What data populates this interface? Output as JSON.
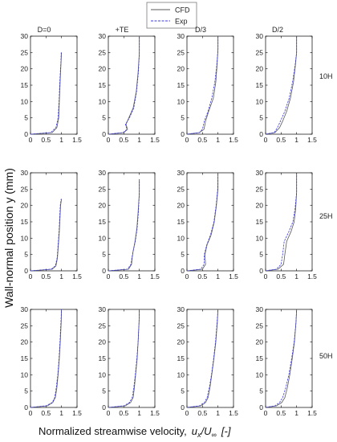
{
  "legend": {
    "placement": "top-center",
    "entries": [
      {
        "label": "CFD",
        "color": "#5a5a5a"
      },
      {
        "label": "Exp",
        "color": "#3b3bd6"
      }
    ]
  },
  "ylabel": "Wall-normal position y (mm)",
  "xlabel_text": "Normalized streamwise velocity,",
  "xlabel_symbol": {
    "u": "u",
    "x": "x",
    "slash": "/",
    "U": "U",
    "inf": "∞",
    "unit": "[-]"
  },
  "column_titles": [
    "D=0",
    "+TE",
    "D/3",
    "D/2"
  ],
  "row_titles": [
    "10H",
    "25H",
    "50H"
  ],
  "chart_data": {
    "type": "line",
    "layout": "small-multiples 3x4",
    "xlim": [
      0,
      1.5
    ],
    "ylim": [
      0,
      30
    ],
    "xticks": [
      "0",
      "0.5",
      "1",
      "1.5"
    ],
    "yticks": [
      "0",
      "5",
      "10",
      "15",
      "20",
      "25",
      "30"
    ],
    "grid": false,
    "panels": [
      [
        {
          "col": "D=0",
          "row": "10H",
          "series": [
            {
              "name": "CFD",
              "x": [
                0.0,
                0.7,
                0.85,
                0.91,
                0.93,
                0.96,
                1.0,
                1.0
              ],
              "y": [
                0,
                0.5,
                2,
                5,
                10,
                17,
                25,
                25
              ]
            },
            {
              "name": "Exp",
              "x": [
                0.0,
                0.65,
                0.82,
                0.89,
                0.92,
                0.95,
                0.98,
                0.99
              ],
              "y": [
                0,
                0.5,
                2,
                5,
                10,
                17,
                22,
                25
              ]
            }
          ]
        },
        {
          "col": "+TE",
          "row": "10H",
          "series": [
            {
              "name": "CFD",
              "x": [
                0.0,
                0.5,
                0.62,
                0.57,
                0.66,
                0.8,
                0.9,
                0.96,
                1.0,
                1.0
              ],
              "y": [
                0,
                0.5,
                1.5,
                3,
                5,
                8,
                13,
                19,
                25,
                30
              ]
            },
            {
              "name": "Exp",
              "x": [
                0.0,
                0.48,
                0.6,
                0.55,
                0.68,
                0.82,
                0.91,
                0.97,
                1.0,
                1.0
              ],
              "y": [
                0,
                0.5,
                1.5,
                3,
                5,
                8,
                13,
                19,
                25,
                30
              ]
            }
          ]
        },
        {
          "col": "D/3",
          "row": "10H",
          "series": [
            {
              "name": "CFD",
              "x": [
                0.0,
                0.4,
                0.55,
                0.6,
                0.7,
                0.85,
                0.93,
                0.97,
                1.0,
                1.0
              ],
              "y": [
                0,
                0.5,
                1.5,
                4,
                7,
                11,
                16,
                21,
                26,
                30
              ]
            },
            {
              "name": "Exp",
              "x": [
                0.0,
                0.4,
                0.5,
                0.56,
                0.68,
                0.8,
                0.9,
                0.96,
                1.0,
                1.0
              ],
              "y": [
                0,
                0.5,
                1.5,
                4,
                7,
                11,
                16,
                21,
                26,
                30
              ]
            }
          ]
        },
        {
          "col": "D/2",
          "row": "10H",
          "series": [
            {
              "name": "CFD",
              "x": [
                0.0,
                0.3,
                0.45,
                0.55,
                0.68,
                0.8,
                0.9,
                0.96,
                1.0,
                1.0
              ],
              "y": [
                0,
                0.5,
                2,
                4,
                7,
                11,
                16,
                21,
                25,
                30
              ]
            },
            {
              "name": "Exp",
              "x": [
                0.0,
                0.28,
                0.38,
                0.48,
                0.62,
                0.76,
                0.87,
                0.95,
                1.0,
                1.0
              ],
              "y": [
                0,
                0.5,
                2,
                4,
                7,
                11,
                16,
                21,
                25,
                30
              ]
            }
          ]
        }
      ],
      [
        {
          "col": "D=0",
          "row": "25H",
          "series": [
            {
              "name": "CFD",
              "x": [
                0.0,
                0.7,
                0.82,
                0.87,
                0.9,
                0.93,
                0.95,
                0.97,
                1.0
              ],
              "y": [
                0,
                0.5,
                1.5,
                4,
                8,
                12,
                16,
                20,
                22
              ]
            },
            {
              "name": "Exp",
              "x": [
                0.0,
                0.67,
                0.8,
                0.86,
                0.89,
                0.92,
                0.94,
                0.96,
                0.99
              ],
              "y": [
                0,
                0.5,
                1.5,
                4,
                8,
                12,
                16,
                20,
                22
              ]
            }
          ]
        },
        {
          "col": "+TE",
          "row": "25H",
          "series": [
            {
              "name": "CFD",
              "x": [
                0.0,
                0.65,
                0.75,
                0.77,
                0.8,
                0.86,
                0.92,
                0.96,
                1.0,
                1.0
              ],
              "y": [
                0,
                0.5,
                2,
                4,
                6,
                9,
                13,
                18,
                24,
                28
              ]
            },
            {
              "name": "Exp",
              "x": [
                0.0,
                0.62,
                0.73,
                0.76,
                0.8,
                0.87,
                0.93,
                0.97,
                1.0,
                1.0
              ],
              "y": [
                0,
                0.5,
                2,
                4,
                6,
                9,
                13,
                18,
                24,
                28
              ]
            }
          ]
        },
        {
          "col": "D/3",
          "row": "25H",
          "series": [
            {
              "name": "CFD",
              "x": [
                0.0,
                0.5,
                0.6,
                0.58,
                0.65,
                0.78,
                0.88,
                0.95,
                1.0,
                1.0
              ],
              "y": [
                0,
                0.5,
                2,
                5,
                8,
                11,
                15,
                20,
                25,
                30
              ]
            },
            {
              "name": "Exp",
              "x": [
                0.0,
                0.45,
                0.55,
                0.56,
                0.64,
                0.76,
                0.87,
                0.94,
                0.99,
                1.0
              ],
              "y": [
                0,
                0.5,
                2,
                5,
                8,
                11,
                15,
                20,
                25,
                30
              ]
            }
          ]
        },
        {
          "col": "D/2",
          "row": "25H",
          "series": [
            {
              "name": "CFD",
              "x": [
                0.0,
                0.4,
                0.58,
                0.62,
                0.68,
                0.82,
                0.92,
                0.97,
                1.0,
                1.0
              ],
              "y": [
                0,
                0.5,
                2,
                5,
                9,
                12,
                15,
                19,
                24,
                30
              ]
            },
            {
              "name": "Exp",
              "x": [
                0.0,
                0.35,
                0.5,
                0.55,
                0.6,
                0.75,
                0.88,
                0.95,
                1.0,
                1.0
              ],
              "y": [
                0,
                0.5,
                2,
                5,
                9,
                12,
                15,
                19,
                24,
                30
              ]
            }
          ]
        }
      ],
      [
        {
          "col": "D=0",
          "row": "50H",
          "series": [
            {
              "name": "CFD",
              "x": [
                0.0,
                0.55,
                0.72,
                0.8,
                0.85,
                0.89,
                0.93,
                0.96,
                0.99,
                1.0
              ],
              "y": [
                0,
                0.5,
                1.5,
                3,
                6,
                10,
                15,
                20,
                26,
                30
              ]
            },
            {
              "name": "Exp",
              "x": [
                0.0,
                0.5,
                0.7,
                0.78,
                0.83,
                0.88,
                0.92,
                0.95,
                0.98,
                1.0
              ],
              "y": [
                0,
                0.5,
                1.5,
                3,
                6,
                10,
                15,
                20,
                26,
                30
              ]
            }
          ]
        },
        {
          "col": "+TE",
          "row": "50H",
          "series": [
            {
              "name": "CFD",
              "x": [
                0.0,
                0.55,
                0.72,
                0.8,
                0.84,
                0.88,
                0.93,
                0.96,
                0.99,
                1.0
              ],
              "y": [
                0,
                0.5,
                1.5,
                3,
                6,
                10,
                15,
                20,
                26,
                30
              ]
            },
            {
              "name": "Exp",
              "x": [
                0.0,
                0.5,
                0.68,
                0.77,
                0.82,
                0.87,
                0.92,
                0.96,
                0.99,
                1.0
              ],
              "y": [
                0,
                0.5,
                1.5,
                3,
                6,
                10,
                15,
                20,
                26,
                30
              ]
            }
          ]
        },
        {
          "col": "D/3",
          "row": "50H",
          "series": [
            {
              "name": "CFD",
              "x": [
                0.0,
                0.45,
                0.6,
                0.68,
                0.74,
                0.8,
                0.87,
                0.93,
                0.98,
                1.0
              ],
              "y": [
                0,
                0.5,
                1.5,
                3,
                6,
                10,
                15,
                20,
                26,
                30
              ]
            },
            {
              "name": "Exp",
              "x": [
                0.0,
                0.4,
                0.56,
                0.65,
                0.72,
                0.79,
                0.86,
                0.92,
                0.97,
                1.0
              ],
              "y": [
                0,
                0.5,
                1.5,
                3,
                6,
                10,
                15,
                20,
                26,
                30
              ]
            }
          ]
        },
        {
          "col": "D/2",
          "row": "50H",
          "series": [
            {
              "name": "CFD",
              "x": [
                0.0,
                0.35,
                0.52,
                0.62,
                0.7,
                0.78,
                0.86,
                0.93,
                0.98,
                1.0
              ],
              "y": [
                0,
                0.5,
                1.5,
                3,
                6,
                10,
                15,
                20,
                26,
                30
              ]
            },
            {
              "name": "Exp",
              "x": [
                0.0,
                0.3,
                0.45,
                0.55,
                0.65,
                0.75,
                0.84,
                0.92,
                0.98,
                1.0
              ],
              "y": [
                0,
                0.5,
                1.5,
                3,
                6,
                10,
                15,
                20,
                26,
                30
              ]
            }
          ]
        }
      ]
    ]
  }
}
